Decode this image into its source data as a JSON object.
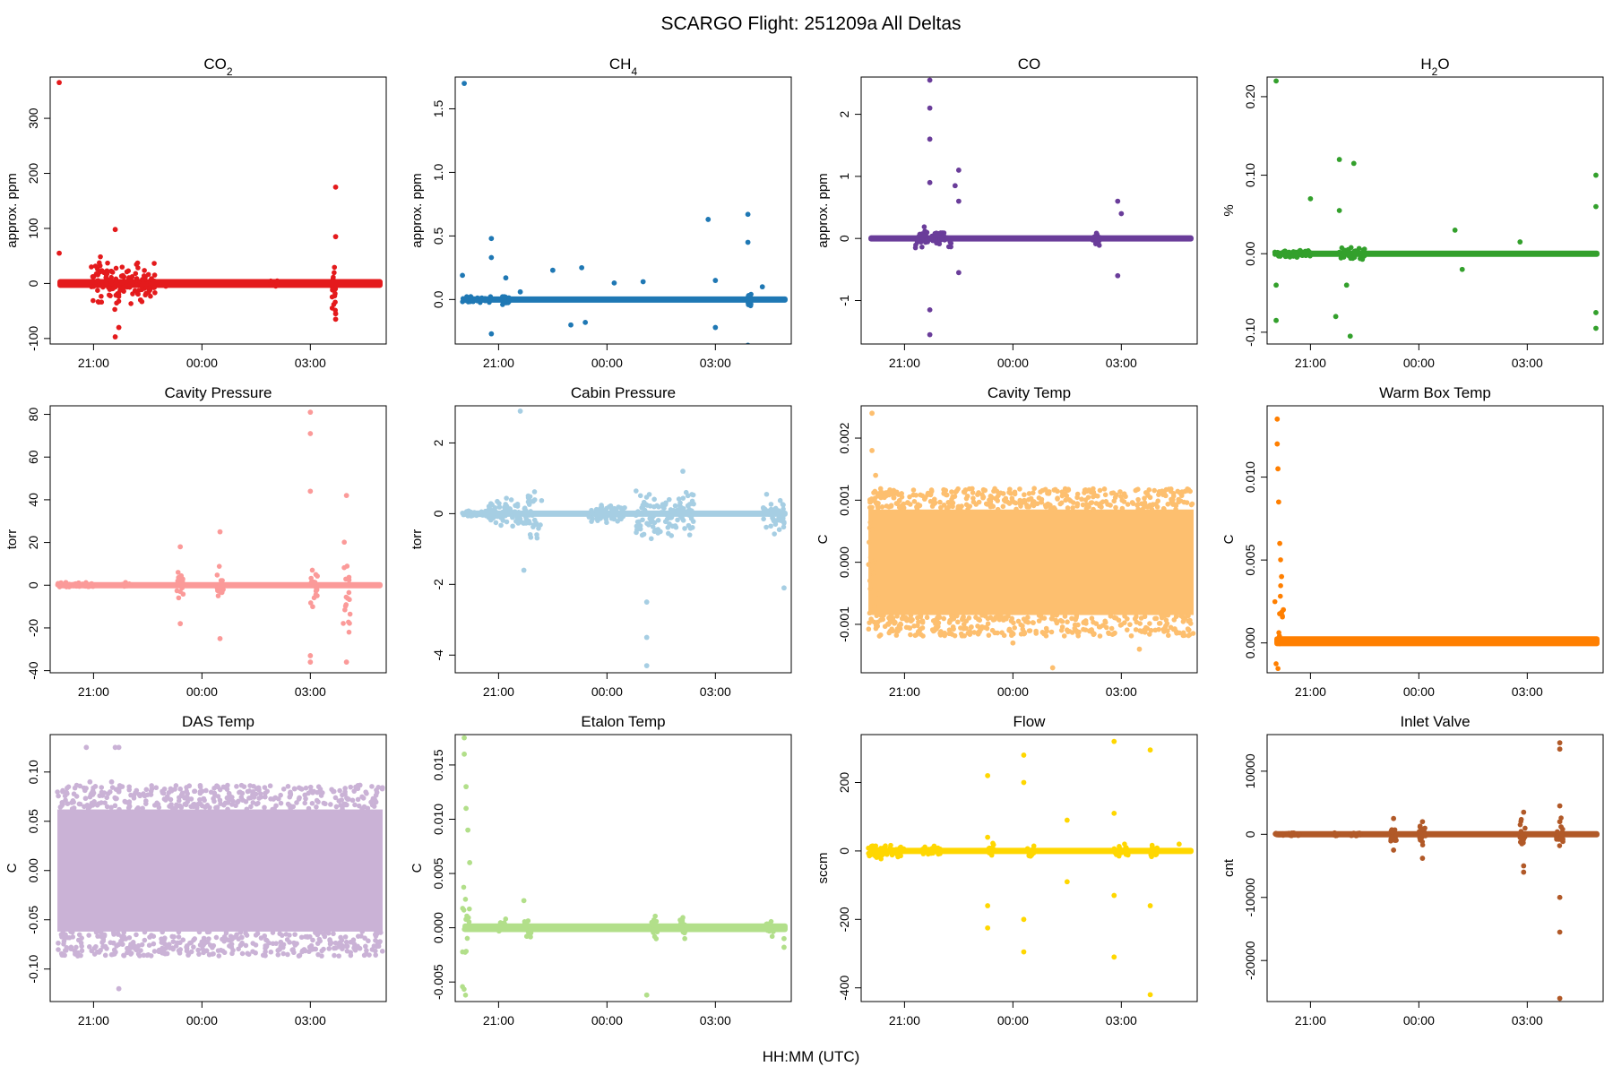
{
  "title": "SCARGO Flight: 251209a  All Deltas",
  "xlabel": "HH:MM (UTC)",
  "x_tick_labels": [
    "21:00",
    "00:00",
    "03:00"
  ],
  "x_tick_hours": [
    21,
    24,
    27
  ],
  "x_range_hours": [
    19.8,
    29.1
  ],
  "chart_data": [
    {
      "type": "scatter",
      "title": "CO",
      "title_sub": "2",
      "ylabel": "approx. ppm",
      "color": "#e41a1c",
      "ylim": [
        -110,
        375
      ],
      "yticks": [
        -100,
        0,
        100,
        200,
        300
      ],
      "ytick_labels": [
        "-100",
        "0",
        "100",
        "200",
        "300"
      ],
      "baseline": 0,
      "noise": 8,
      "band": false,
      "bursts": [
        [
          20.9,
          21.8,
          60
        ],
        [
          21.8,
          22.7,
          45
        ],
        [
          25.9,
          26.1,
          8
        ],
        [
          27.6,
          27.7,
          60
        ]
      ],
      "spikes": [
        [
          20.05,
          365
        ],
        [
          20.05,
          55
        ],
        [
          21.6,
          98
        ],
        [
          21.6,
          -97
        ],
        [
          21.7,
          -80
        ],
        [
          22.3,
          -30
        ],
        [
          23.0,
          -5
        ],
        [
          27.7,
          175
        ],
        [
          27.7,
          85
        ],
        [
          27.7,
          -65
        ],
        [
          27.7,
          -55
        ]
      ]
    },
    {
      "type": "scatter",
      "title": "CH",
      "title_sub": "4",
      "ylabel": "approx. ppm",
      "color": "#1f78b4",
      "ylim": [
        -0.35,
        1.75
      ],
      "yticks": [
        0,
        0.5,
        1.0,
        1.5
      ],
      "ytick_labels": [
        "0.0",
        "0.5",
        "1.0",
        "1.5"
      ],
      "baseline": 0,
      "noise": 0.02,
      "band": false,
      "bursts": [
        [
          20.0,
          20.8,
          0.03
        ],
        [
          21.1,
          21.3,
          0.05
        ],
        [
          27.9,
          28.0,
          0.1
        ]
      ],
      "spikes": [
        [
          20.05,
          1.7
        ],
        [
          20.0,
          0.19
        ],
        [
          20.8,
          0.48
        ],
        [
          20.8,
          0.33
        ],
        [
          20.8,
          -0.27
        ],
        [
          21.2,
          0.17
        ],
        [
          21.6,
          0.06
        ],
        [
          22.5,
          0.23
        ],
        [
          23.0,
          -0.2
        ],
        [
          23.3,
          0.25
        ],
        [
          23.4,
          -0.18
        ],
        [
          24.2,
          0.13
        ],
        [
          25.0,
          0.14
        ],
        [
          26.8,
          0.63
        ],
        [
          27.0,
          0.15
        ],
        [
          27.0,
          -0.22
        ],
        [
          27.9,
          0.67
        ],
        [
          27.9,
          -0.36
        ],
        [
          27.9,
          0.45
        ],
        [
          28.3,
          0.1
        ]
      ]
    },
    {
      "type": "scatter",
      "title": "CO",
      "title_sub": "",
      "ylabel": "approx. ppm",
      "color": "#6a3d9a",
      "ylim": [
        -1.7,
        2.6
      ],
      "yticks": [
        -1,
        0,
        1,
        2
      ],
      "ytick_labels": [
        "-1",
        "0",
        "1",
        "2"
      ],
      "baseline": 0,
      "noise": 0.03,
      "band": false,
      "bursts": [
        [
          21.3,
          22.0,
          0.2
        ],
        [
          22.0,
          22.3,
          0.15
        ],
        [
          26.2,
          26.4,
          0.2
        ]
      ],
      "spikes": [
        [
          21.7,
          2.55
        ],
        [
          21.7,
          2.1
        ],
        [
          21.7,
          1.6
        ],
        [
          21.7,
          -1.55
        ],
        [
          21.7,
          -1.15
        ],
        [
          21.7,
          0.9
        ],
        [
          22.5,
          1.1
        ],
        [
          22.5,
          0.6
        ],
        [
          22.5,
          -0.55
        ],
        [
          22.4,
          0.85
        ],
        [
          26.9,
          0.6
        ],
        [
          26.9,
          -0.6
        ],
        [
          27.0,
          0.4
        ]
      ]
    },
    {
      "type": "scatter",
      "title": "H",
      "title_sub": "2",
      "title_suffix": "O",
      "ylabel": "%",
      "color": "#33a02c",
      "ylim": [
        -0.115,
        0.225
      ],
      "yticks": [
        -0.1,
        0,
        0.1,
        0.2
      ],
      "ytick_labels": [
        "-0.10",
        "0.00",
        "0.10",
        "0.20"
      ],
      "baseline": 0,
      "noise": 0.004,
      "band": false,
      "bursts": [
        [
          20.0,
          21.0,
          0.006
        ],
        [
          21.8,
          22.5,
          0.01
        ]
      ],
      "spikes": [
        [
          20.05,
          0.22
        ],
        [
          20.05,
          -0.085
        ],
        [
          20.05,
          -0.04
        ],
        [
          21.0,
          0.07
        ],
        [
          21.8,
          0.12
        ],
        [
          21.8,
          0.055
        ],
        [
          22.2,
          0.115
        ],
        [
          21.7,
          -0.08
        ],
        [
          22.1,
          -0.105
        ],
        [
          22.0,
          -0.04
        ],
        [
          25.0,
          0.03
        ],
        [
          25.2,
          -0.02
        ],
        [
          26.8,
          0.015
        ],
        [
          28.9,
          0.1
        ],
        [
          28.9,
          0.06
        ],
        [
          28.9,
          -0.075
        ],
        [
          28.9,
          -0.095
        ]
      ]
    },
    {
      "type": "scatter",
      "title": "Cavity Pressure",
      "title_sub": "",
      "ylabel": "torr",
      "color": "#fb9a99",
      "ylim": [
        -41,
        84
      ],
      "yticks": [
        -40,
        -20,
        0,
        20,
        40,
        60,
        80
      ],
      "ytick_labels": [
        "-40",
        "-20",
        "0",
        "20",
        "40",
        "60",
        "80"
      ],
      "baseline": 0,
      "noise": 0.8,
      "band": false,
      "bursts": [
        [
          20.0,
          21.0,
          1.5
        ],
        [
          21.8,
          22.0,
          1.5
        ],
        [
          23.3,
          23.5,
          8
        ],
        [
          24.4,
          24.6,
          10
        ],
        [
          27.0,
          27.2,
          15
        ],
        [
          27.9,
          28.1,
          40
        ]
      ],
      "spikes": [
        [
          27.0,
          81
        ],
        [
          27.0,
          71
        ],
        [
          27.0,
          44
        ],
        [
          27.0,
          -36
        ],
        [
          27.0,
          -33
        ],
        [
          23.4,
          18
        ],
        [
          23.4,
          -18
        ],
        [
          24.5,
          25
        ],
        [
          24.5,
          -25
        ],
        [
          28.0,
          42
        ],
        [
          28.0,
          -36
        ]
      ]
    },
    {
      "type": "scatter",
      "title": "Cabin Pressure",
      "title_sub": "",
      "ylabel": "torr",
      "color": "#a6cee3",
      "ylim": [
        -4.5,
        3.05
      ],
      "yticks": [
        -4,
        -2,
        0,
        2
      ],
      "ytick_labels": [
        "-4",
        "-2",
        "0",
        "2"
      ],
      "baseline": 0,
      "noise": 0.05,
      "band": false,
      "bursts": [
        [
          20.0,
          20.7,
          0.1
        ],
        [
          20.7,
          21.2,
          0.4
        ],
        [
          21.2,
          21.8,
          0.5
        ],
        [
          21.8,
          22.2,
          1.0
        ],
        [
          23.5,
          24.5,
          0.3
        ],
        [
          24.8,
          25.5,
          1.0
        ],
        [
          25.5,
          26.4,
          1.0
        ],
        [
          28.3,
          28.9,
          0.8
        ]
      ],
      "spikes": [
        [
          21.6,
          2.9
        ],
        [
          21.7,
          -1.6
        ],
        [
          25.1,
          -2.5
        ],
        [
          25.1,
          -3.5
        ],
        [
          25.1,
          -4.3
        ],
        [
          28.9,
          -2.1
        ],
        [
          26.1,
          1.2
        ]
      ]
    },
    {
      "type": "scatter",
      "title": "Cavity Temp",
      "title_sub": "",
      "ylabel": "C",
      "color": "#fdbf6f",
      "ylim": [
        -0.00178,
        0.00252
      ],
      "yticks": [
        -0.001,
        0,
        0.001,
        0.002
      ],
      "ytick_labels": [
        "-0.001",
        "0.000",
        "0.001",
        "0.002"
      ],
      "baseline": 0,
      "noise": 0.00085,
      "band": true,
      "bursts": [
        [
          20.0,
          20.3,
          0.0013
        ]
      ],
      "spikes": [
        [
          20.1,
          0.0024
        ],
        [
          20.1,
          0.0018
        ],
        [
          20.2,
          0.0014
        ],
        [
          25.1,
          -0.0017
        ],
        [
          24.0,
          -0.0013
        ],
        [
          27.5,
          -0.0014
        ]
      ]
    },
    {
      "type": "scatter",
      "title": "Warm Box Temp",
      "title_sub": "",
      "ylabel": "C",
      "color": "#ff7f00",
      "ylim": [
        -0.0018,
        0.0143
      ],
      "yticks": [
        0,
        0.005,
        0.01
      ],
      "ytick_labels": [
        "0.000",
        "0.005",
        "0.010"
      ],
      "baseline": 0.0001,
      "noise": 0.0003,
      "band": false,
      "bursts": [
        [
          20.0,
          20.25,
          0.007
        ]
      ],
      "spikes": [
        [
          20.08,
          0.0135
        ],
        [
          20.08,
          0.012
        ],
        [
          20.1,
          0.0105
        ],
        [
          20.12,
          0.0085
        ],
        [
          20.15,
          0.006
        ],
        [
          20.2,
          0.004
        ],
        [
          20.25,
          0.002
        ]
      ]
    },
    {
      "type": "scatter",
      "title": "DAS Temp",
      "title_sub": "",
      "ylabel": "C",
      "color": "#cab2d6",
      "ylim": [
        -0.133,
        0.138
      ],
      "yticks": [
        -0.1,
        -0.05,
        0,
        0.05,
        0.1
      ],
      "ytick_labels": [
        "-0.10",
        "-0.05",
        "0.00",
        "0.05",
        "0.10"
      ],
      "baseline": 0,
      "noise": 0.062,
      "band": true,
      "bursts": [],
      "spikes": [
        [
          20.8,
          0.125
        ],
        [
          21.6,
          0.125
        ],
        [
          21.7,
          0.125
        ],
        [
          20.9,
          0.09
        ],
        [
          21.5,
          0.09
        ],
        [
          21.7,
          0.08
        ],
        [
          20.9,
          0.065
        ],
        [
          21.7,
          -0.075
        ],
        [
          21.7,
          -0.12
        ]
      ]
    },
    {
      "type": "scatter",
      "title": "Etalon Temp",
      "title_sub": "",
      "ylabel": "C",
      "color": "#b2df8a",
      "ylim": [
        -0.0068,
        0.0178
      ],
      "yticks": [
        -0.005,
        0,
        0.005,
        0.01,
        0.015
      ],
      "ytick_labels": [
        "-0.005",
        "0.000",
        "0.005",
        "0.010",
        "0.015"
      ],
      "baseline": 0,
      "noise": 0.0004,
      "band": false,
      "bursts": [
        [
          20.0,
          20.2,
          0.008
        ],
        [
          21.0,
          21.2,
          0.001
        ],
        [
          21.7,
          21.9,
          0.0015
        ],
        [
          25.2,
          25.4,
          0.0015
        ],
        [
          26.0,
          26.2,
          0.0015
        ],
        [
          28.4,
          28.7,
          0.001
        ]
      ],
      "spikes": [
        [
          20.05,
          0.0175
        ],
        [
          20.05,
          0.016
        ],
        [
          20.1,
          0.013
        ],
        [
          20.1,
          0.011
        ],
        [
          20.15,
          0.009
        ],
        [
          20.2,
          0.006
        ],
        [
          21.7,
          0.0025
        ],
        [
          25.1,
          -0.0062
        ],
        [
          28.9,
          -0.0018
        ],
        [
          28.9,
          -0.001
        ]
      ]
    },
    {
      "type": "scatter",
      "title": "Flow",
      "title_sub": "",
      "ylabel": "sccm",
      "color": "#ffd700",
      "ylim": [
        -440,
        340
      ],
      "yticks": [
        -400,
        -200,
        0,
        200
      ],
      "ytick_labels": [
        "-400",
        "-200",
        "0",
        "200"
      ],
      "baseline": 0,
      "noise": 8,
      "band": false,
      "bursts": [
        [
          20.0,
          21.0,
          25
        ],
        [
          21.5,
          22.0,
          15
        ],
        [
          23.3,
          23.5,
          25
        ],
        [
          24.4,
          24.6,
          25
        ],
        [
          26.8,
          27.2,
          20
        ],
        [
          27.8,
          28.0,
          30
        ]
      ],
      "spikes": [
        [
          23.3,
          220
        ],
        [
          23.3,
          -225
        ],
        [
          23.3,
          -160
        ],
        [
          23.3,
          40
        ],
        [
          24.3,
          280
        ],
        [
          24.3,
          200
        ],
        [
          24.3,
          -200
        ],
        [
          24.3,
          -295
        ],
        [
          25.5,
          90
        ],
        [
          25.5,
          -90
        ],
        [
          26.8,
          320
        ],
        [
          26.8,
          110
        ],
        [
          26.8,
          -130
        ],
        [
          26.8,
          -310
        ],
        [
          27.8,
          295
        ],
        [
          27.8,
          -160
        ],
        [
          27.8,
          -420
        ],
        [
          28.6,
          20
        ]
      ]
    },
    {
      "type": "scatter",
      "title": "Inlet Valve",
      "title_sub": "",
      "ylabel": "cnt",
      "color": "#b15928",
      "ylim": [
        -26500,
        15800
      ],
      "yticks": [
        -20000,
        -10000,
        0,
        10000
      ],
      "ytick_labels": [
        "-20000",
        "-10000",
        "0",
        "10000"
      ],
      "baseline": 0,
      "noise": 150,
      "band": false,
      "bursts": [
        [
          20.0,
          20.7,
          300
        ],
        [
          21.6,
          21.8,
          300
        ],
        [
          22.1,
          22.4,
          400
        ],
        [
          23.2,
          23.4,
          2000
        ],
        [
          24.0,
          24.2,
          2500
        ],
        [
          26.8,
          27.0,
          3000
        ],
        [
          27.8,
          28.0,
          3500
        ]
      ],
      "spikes": [
        [
          27.9,
          14500
        ],
        [
          27.9,
          13500
        ],
        [
          27.9,
          4500
        ],
        [
          27.9,
          2000
        ],
        [
          27.9,
          -10000
        ],
        [
          27.9,
          -15500
        ],
        [
          27.9,
          -26000
        ],
        [
          26.9,
          3500
        ],
        [
          26.9,
          -6000
        ],
        [
          26.9,
          -5000
        ],
        [
          23.3,
          2500
        ],
        [
          23.3,
          -2500
        ],
        [
          24.1,
          2000
        ],
        [
          24.1,
          -3800
        ]
      ]
    }
  ]
}
